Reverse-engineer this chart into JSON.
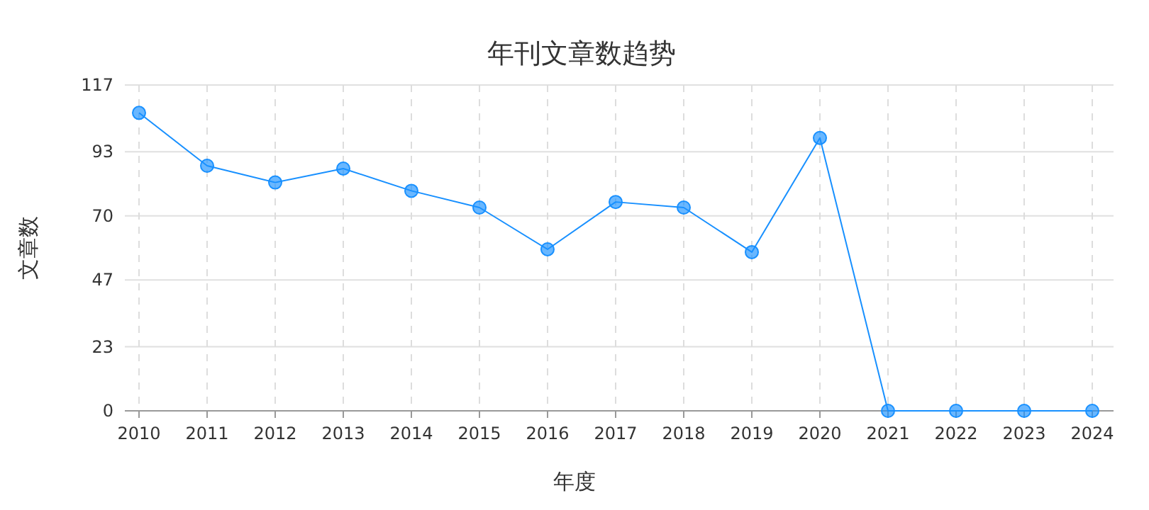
{
  "chart_data": {
    "type": "line",
    "title": "年刊文章数趋势",
    "xlabel": "年度",
    "ylabel": "文章数",
    "categories": [
      "2010",
      "2011",
      "2012",
      "2013",
      "2014",
      "2015",
      "2016",
      "2017",
      "2018",
      "2019",
      "2020",
      "2021",
      "2022",
      "2023",
      "2024"
    ],
    "series": [
      {
        "color": "#1890ff",
        "values": [
          107,
          88,
          82,
          87,
          79,
          73,
          58,
          75,
          73,
          57,
          98,
          0,
          0,
          0,
          0
        ]
      }
    ],
    "ylim": [
      0,
      117
    ],
    "yticks": [
      0,
      23,
      47,
      70,
      93,
      117
    ],
    "grid": true,
    "marker": "circle",
    "line_style": "solid"
  }
}
